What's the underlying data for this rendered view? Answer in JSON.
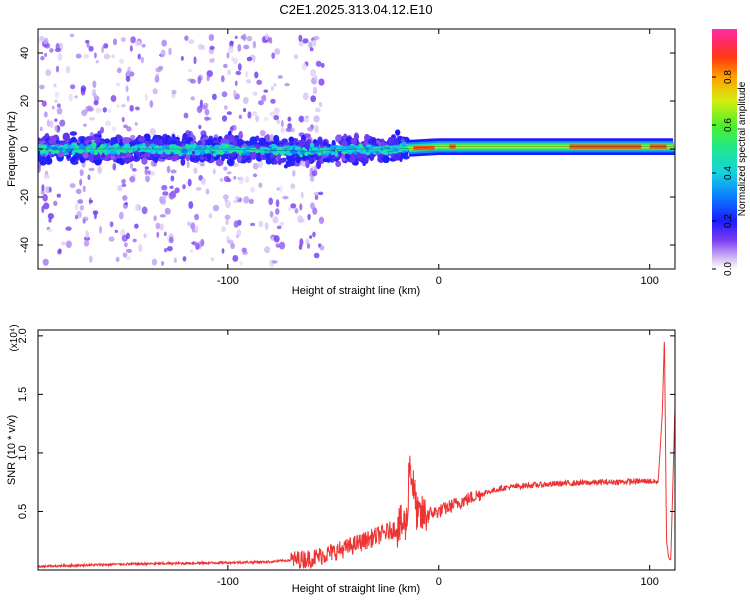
{
  "chart_data": [
    {
      "type": "heatmap",
      "title": "C2E1.2025.313.04.12.E10",
      "xlabel": "Height of straight line (km)",
      "ylabel": "Frequency (Hz)",
      "xlim": [
        -190,
        112
      ],
      "ylim": [
        -50,
        50
      ],
      "x_ticks": [
        -100,
        0,
        100
      ],
      "y_ticks": [
        -40,
        -20,
        0,
        20,
        40
      ],
      "colorbar": {
        "label": "Normalized spectral amplitude",
        "ticks": [
          "0.0",
          "0.2",
          "0.4",
          "0.6",
          "0.8"
        ],
        "range": [
          0,
          1
        ]
      },
      "ridge": [
        {
          "x": -190,
          "y": 0
        },
        {
          "x": -150,
          "y": 0
        },
        {
          "x": -100,
          "y": 0
        },
        {
          "x": -60,
          "y": -1
        },
        {
          "x": -40,
          "y": 0
        },
        {
          "x": -20,
          "y": 0
        },
        {
          "x": 0,
          "y": 1
        },
        {
          "x": 40,
          "y": 1
        },
        {
          "x": 80,
          "y": 1
        },
        {
          "x": 100,
          "y": 1
        },
        {
          "x": 112,
          "y": 1
        }
      ]
    },
    {
      "type": "line",
      "xlabel": "Height of straight line (km)",
      "ylabel": "SNR (10 * v/v)",
      "y_multiplier": "(x10⁴)",
      "xlim": [
        -190,
        112
      ],
      "ylim": [
        0,
        2.05
      ],
      "x_ticks": [
        -100,
        0,
        100
      ],
      "y_ticks": [
        "0.5",
        "1.0",
        "1.5",
        "2.0"
      ],
      "series_color": "#ee3333",
      "x": [
        -190,
        -150,
        -110,
        -80,
        -60,
        -45,
        -35,
        -25,
        -15,
        -14,
        -10,
        -5,
        0,
        10,
        20,
        30,
        40,
        60,
        80,
        100,
        104,
        106,
        107,
        108,
        109,
        110,
        112
      ],
      "y": [
        0.03,
        0.05,
        0.06,
        0.07,
        0.1,
        0.18,
        0.25,
        0.32,
        0.4,
        0.95,
        0.45,
        0.48,
        0.5,
        0.58,
        0.65,
        0.7,
        0.72,
        0.74,
        0.75,
        0.76,
        0.75,
        1.35,
        2.02,
        0.25,
        0.1,
        0.08,
        1.4
      ]
    }
  ]
}
